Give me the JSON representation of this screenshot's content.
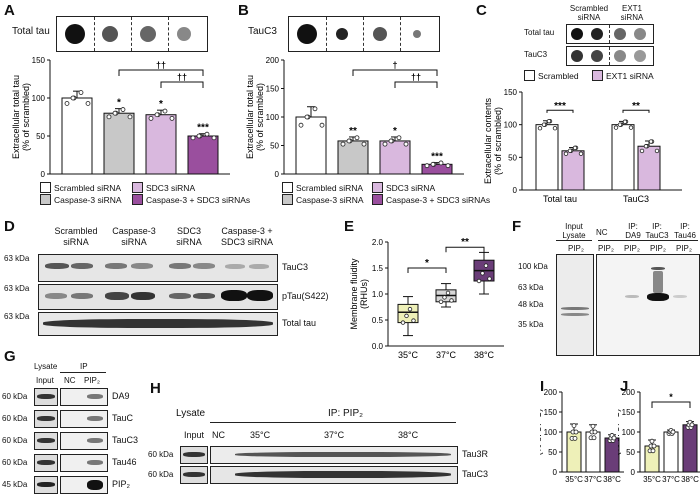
{
  "panels": {
    "A": {
      "label": "A",
      "blot_label": "Total tau",
      "ylabel": "Extracellular total tau\n(% of scrambled)"
    },
    "B": {
      "label": "B",
      "blot_label": "TauC3",
      "ylabel": "Extracellular total tau\n(% of scrambled)"
    },
    "C": {
      "label": "C",
      "col1": "Scrambled siRNA",
      "col2": "EXT1 siRNA",
      "row1": "Total tau",
      "row2": "TauC3",
      "ylabel": "Extracellular contents\n(% of scrambled)",
      "legend": [
        "Scrambled",
        "EXT1 siRNA"
      ]
    },
    "D": {
      "label": "D",
      "groups": [
        "Scrambled siRNA",
        "Caspase-3 siRNA",
        "SDC3 siRNA",
        "Caspase-3 + SDC3 siRNA"
      ],
      "mw": [
        "63 kDa",
        "63 kDa",
        "63 kDa"
      ],
      "rows": [
        "TauC3",
        "pTau(S422)",
        "Total tau"
      ]
    },
    "E": {
      "label": "E",
      "ylabel": "Membrane fluidity\n(RHUs)"
    },
    "F": {
      "label": "F",
      "lane1_top": "Input Lysate",
      "lane1_bottom": "PIP₂",
      "lanes": [
        {
          "top": "NC",
          "bottom": "PIP₂"
        },
        {
          "top": "IP: DA9",
          "bottom": "PIP₂"
        },
        {
          "top": "IP: TauC3",
          "bottom": "PIP₂"
        },
        {
          "top": "IP: Tau46",
          "bottom": "PIP₂"
        }
      ],
      "mw": [
        "100 kDa",
        "63 kDa",
        "48 kDa",
        "35 kDa"
      ]
    },
    "G": {
      "label": "G",
      "lysate": "Lysate",
      "input": "Input",
      "ip": "IP",
      "nc": "NC",
      "pip": "PIP₂",
      "rows": [
        {
          "mw": "60 kDa",
          "name": "DA9"
        },
        {
          "mw": "60 kDa",
          "name": "TauC"
        },
        {
          "mw": "60 kDa",
          "name": "TauC3"
        },
        {
          "mw": "60 kDa",
          "name": "Tau46"
        },
        {
          "mw": "45 kDa",
          "name": "PIP₂"
        }
      ]
    },
    "H": {
      "label": "H",
      "lysate": "Lysate",
      "input": "Input",
      "ip": "IP: PIP₂",
      "nc": "NC",
      "temps": [
        "35°C",
        "37°C",
        "38°C"
      ],
      "mw": [
        "60 kDa",
        "60 kDa"
      ],
      "rows": [
        "Tau3R",
        "TauC3"
      ]
    },
    "I": {
      "label": "I",
      "ylabel": "Tau3R/PIP₂ binding\n(% of 37°C)"
    },
    "J": {
      "label": "J",
      "ylabel": "TauC3/PIP₂ binding\n(% of 37°C)"
    }
  },
  "legend_ab": [
    "Scrambled siRNA",
    "SDC3 siRNA",
    "Caspase-3 siRNA",
    "Caspase-3 + SDC3 siRNAs"
  ],
  "colors": {
    "white": "#ffffff",
    "grey": "#c8c8c8",
    "lilac": "#d9b8de",
    "purple": "#9a4f9e",
    "boxE1": "#eef0b8",
    "boxE2": "#d7d7d7",
    "boxE3": "#6a3d78"
  },
  "chart_data": [
    {
      "type": "bar",
      "panel": "A",
      "categories": [
        "Scrambled siRNA",
        "Caspase-3 siRNA",
        "SDC3 siRNA",
        "Caspase-3 + SDC3 siRNAs"
      ],
      "values": [
        100,
        80,
        78,
        50
      ],
      "errors": [
        9,
        6,
        6,
        3
      ],
      "ylim": [
        0,
        150
      ],
      "yticks": [
        0,
        50,
        100,
        150
      ],
      "significance": [
        "",
        "*",
        "*",
        "***"
      ],
      "brackets": [
        {
          "from": 1,
          "to": 3,
          "label": "††"
        },
        {
          "from": 2,
          "to": 3,
          "label": "††"
        }
      ]
    },
    {
      "type": "bar",
      "panel": "B",
      "categories": [
        "Scrambled siRNA",
        "Caspase-3 siRNA",
        "SDC3 siRNA",
        "Caspase-3 + SDC3 siRNAs"
      ],
      "values": [
        100,
        58,
        58,
        17
      ],
      "errors": [
        18,
        7,
        7,
        3
      ],
      "ylim": [
        0,
        200
      ],
      "yticks": [
        0,
        50,
        100,
        150,
        200
      ],
      "significance": [
        "",
        "**",
        "*",
        "***"
      ],
      "brackets": [
        {
          "from": 1,
          "to": 3,
          "label": "†"
        },
        {
          "from": 2,
          "to": 3,
          "label": "††"
        }
      ]
    },
    {
      "type": "bar",
      "panel": "C",
      "categories": [
        "Total tau",
        "TauC3"
      ],
      "series": [
        {
          "name": "Scrambled",
          "values": [
            100,
            100
          ],
          "errors": [
            6,
            5
          ]
        },
        {
          "name": "EXT1 siRNA",
          "values": [
            60,
            67
          ],
          "errors": [
            5,
            8
          ]
        }
      ],
      "ylim": [
        0,
        150
      ],
      "yticks": [
        0,
        50,
        100,
        150
      ],
      "significance": [
        "***",
        "**"
      ]
    },
    {
      "type": "box",
      "panel": "E",
      "categories": [
        "35°C",
        "37°C",
        "38°C"
      ],
      "boxes": [
        {
          "q1": 0.45,
          "median": 0.65,
          "q3": 0.8,
          "min": 0.2,
          "max": 0.95
        },
        {
          "q1": 0.85,
          "median": 0.97,
          "q3": 1.08,
          "min": 0.75,
          "max": 1.2
        },
        {
          "q1": 1.25,
          "median": 1.45,
          "q3": 1.65,
          "min": 1.0,
          "max": 1.8
        }
      ],
      "ylim": [
        0.0,
        2.0
      ],
      "yticks": [
        0.0,
        0.5,
        1.0,
        1.5,
        2.0
      ],
      "brackets": [
        {
          "from": 0,
          "to": 1,
          "label": "*"
        },
        {
          "from": 1,
          "to": 2,
          "label": "**"
        }
      ]
    },
    {
      "type": "bar",
      "panel": "I",
      "categories": [
        "35°C",
        "37°C",
        "38°C"
      ],
      "values": [
        100,
        100,
        85
      ],
      "errors": [
        20,
        18,
        8
      ],
      "ylim": [
        0,
        200
      ],
      "yticks": [
        0,
        50,
        100,
        150,
        200
      ]
    },
    {
      "type": "bar",
      "panel": "J",
      "categories": [
        "35°C",
        "37°C",
        "38°C"
      ],
      "values": [
        65,
        100,
        118
      ],
      "errors": [
        15,
        5,
        8
      ],
      "ylim": [
        0,
        200
      ],
      "yticks": [
        0,
        50,
        100,
        150,
        200
      ],
      "brackets": [
        {
          "from": 0,
          "to": 2,
          "label": "*"
        }
      ]
    }
  ]
}
